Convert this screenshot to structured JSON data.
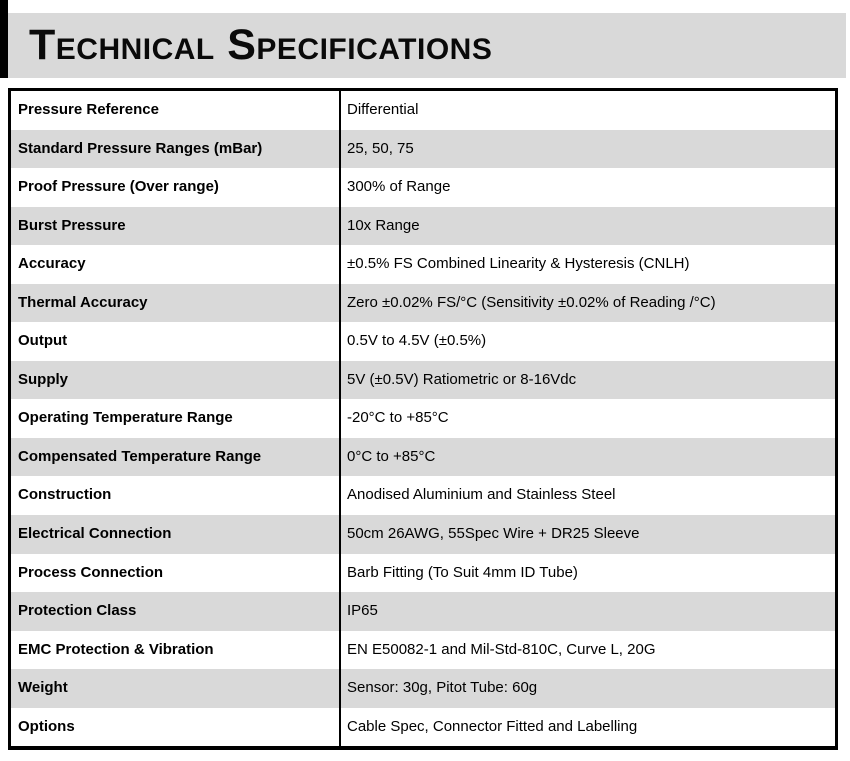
{
  "header": {
    "title": "Technical Specifications"
  },
  "table": {
    "rows": [
      {
        "label": "Pressure Reference",
        "value": "Differential"
      },
      {
        "label": "Standard Pressure Ranges (mBar)",
        "value": "25, 50, 75"
      },
      {
        "label": "Proof Pressure (Over range)",
        "value": "300% of Range"
      },
      {
        "label": "Burst Pressure",
        "value": "10x Range"
      },
      {
        "label": "Accuracy",
        "value": "±0.5% FS Combined Linearity & Hysteresis (CNLH)"
      },
      {
        "label": "Thermal Accuracy",
        "value": "Zero ±0.02% FS/°C (Sensitivity ±0.02% of Reading /°C)"
      },
      {
        "label": "Output",
        "value": "0.5V to 4.5V (±0.5%)"
      },
      {
        "label": "Supply",
        "value": "5V (±0.5V) Ratiometric or 8-16Vdc"
      },
      {
        "label": "Operating Temperature Range",
        "value": "-20°C to +85°C"
      },
      {
        "label": "Compensated Temperature Range",
        "value": "0°C to +85°C"
      },
      {
        "label": "Construction",
        "value": "Anodised Aluminium and Stainless Steel"
      },
      {
        "label": "Electrical Connection",
        "value": "50cm 26AWG, 55Spec Wire + DR25 Sleeve"
      },
      {
        "label": "Process Connection",
        "value": "Barb Fitting (To Suit 4mm ID Tube)"
      },
      {
        "label": "Protection Class",
        "value": "IP65"
      },
      {
        "label": "EMC Protection & Vibration",
        "value": "EN E50082-1 and Mil-Std-810C, Curve L, 20G"
      },
      {
        "label": "Weight",
        "value": "Sensor: 30g, Pitot Tube: 60g"
      },
      {
        "label": "Options",
        "value": "Cable Spec, Connector Fitted and Labelling"
      }
    ]
  },
  "colors": {
    "row_alt_background": "#d9d9d9",
    "header_band_background": "#d9d9d9",
    "border": "#000000",
    "text": "#000000"
  }
}
